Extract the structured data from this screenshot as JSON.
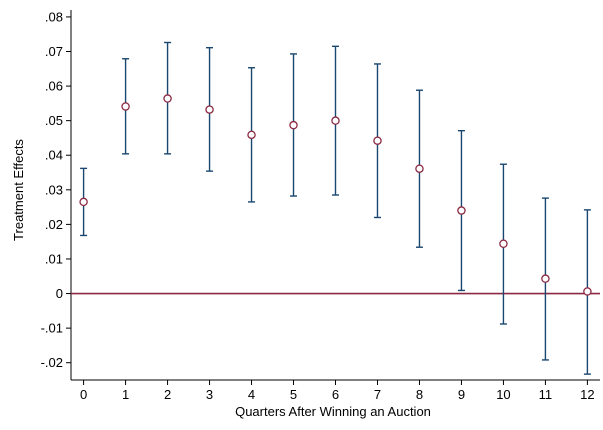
{
  "chart_data": {
    "type": "scatter",
    "title": "",
    "xlabel": "Quarters After Winning an Auction",
    "ylabel": "Treatment Effects",
    "xlim": [
      -0.3,
      12.3
    ],
    "ylim": [
      -0.025,
      0.082
    ],
    "xticks": [
      0,
      1,
      2,
      3,
      4,
      5,
      6,
      7,
      8,
      9,
      10,
      11,
      12
    ],
    "xtick_labels": [
      "0",
      "1",
      "2",
      "3",
      "4",
      "5",
      "6",
      "7",
      "8",
      "9",
      "10",
      "11",
      "12"
    ],
    "yticks": [
      -0.02,
      -0.01,
      0,
      0.01,
      0.02,
      0.03,
      0.04,
      0.05,
      0.06,
      0.07,
      0.08
    ],
    "ytick_labels": [
      "-.02",
      "-.01",
      "0",
      ".01",
      ".02",
      ".03",
      ".04",
      ".05",
      ".06",
      ".07",
      ".08"
    ],
    "reference_line": {
      "y": 0,
      "color": "#8b2942"
    },
    "grid": false,
    "legend": "none",
    "series": [
      {
        "marker": "hollow-circle",
        "marker_color": "#8b2942",
        "errorbar_color": "#1a476f",
        "x": [
          0,
          1,
          2,
          3,
          4,
          5,
          6,
          7,
          8,
          9,
          10,
          11,
          12
        ],
        "y": [
          0.0265,
          0.0541,
          0.0564,
          0.0532,
          0.0459,
          0.0487,
          0.05,
          0.0442,
          0.0361,
          0.024,
          0.0144,
          0.0043,
          0.0006
        ],
        "lower": [
          0.0168,
          0.0404,
          0.0404,
          0.0354,
          0.0265,
          0.0282,
          0.0285,
          0.022,
          0.0134,
          0.0009,
          -0.0088,
          -0.0192,
          -0.0233
        ],
        "upper": [
          0.0362,
          0.0679,
          0.0726,
          0.0711,
          0.0653,
          0.0693,
          0.0715,
          0.0664,
          0.0588,
          0.0471,
          0.0374,
          0.0276,
          0.0242
        ]
      }
    ]
  }
}
